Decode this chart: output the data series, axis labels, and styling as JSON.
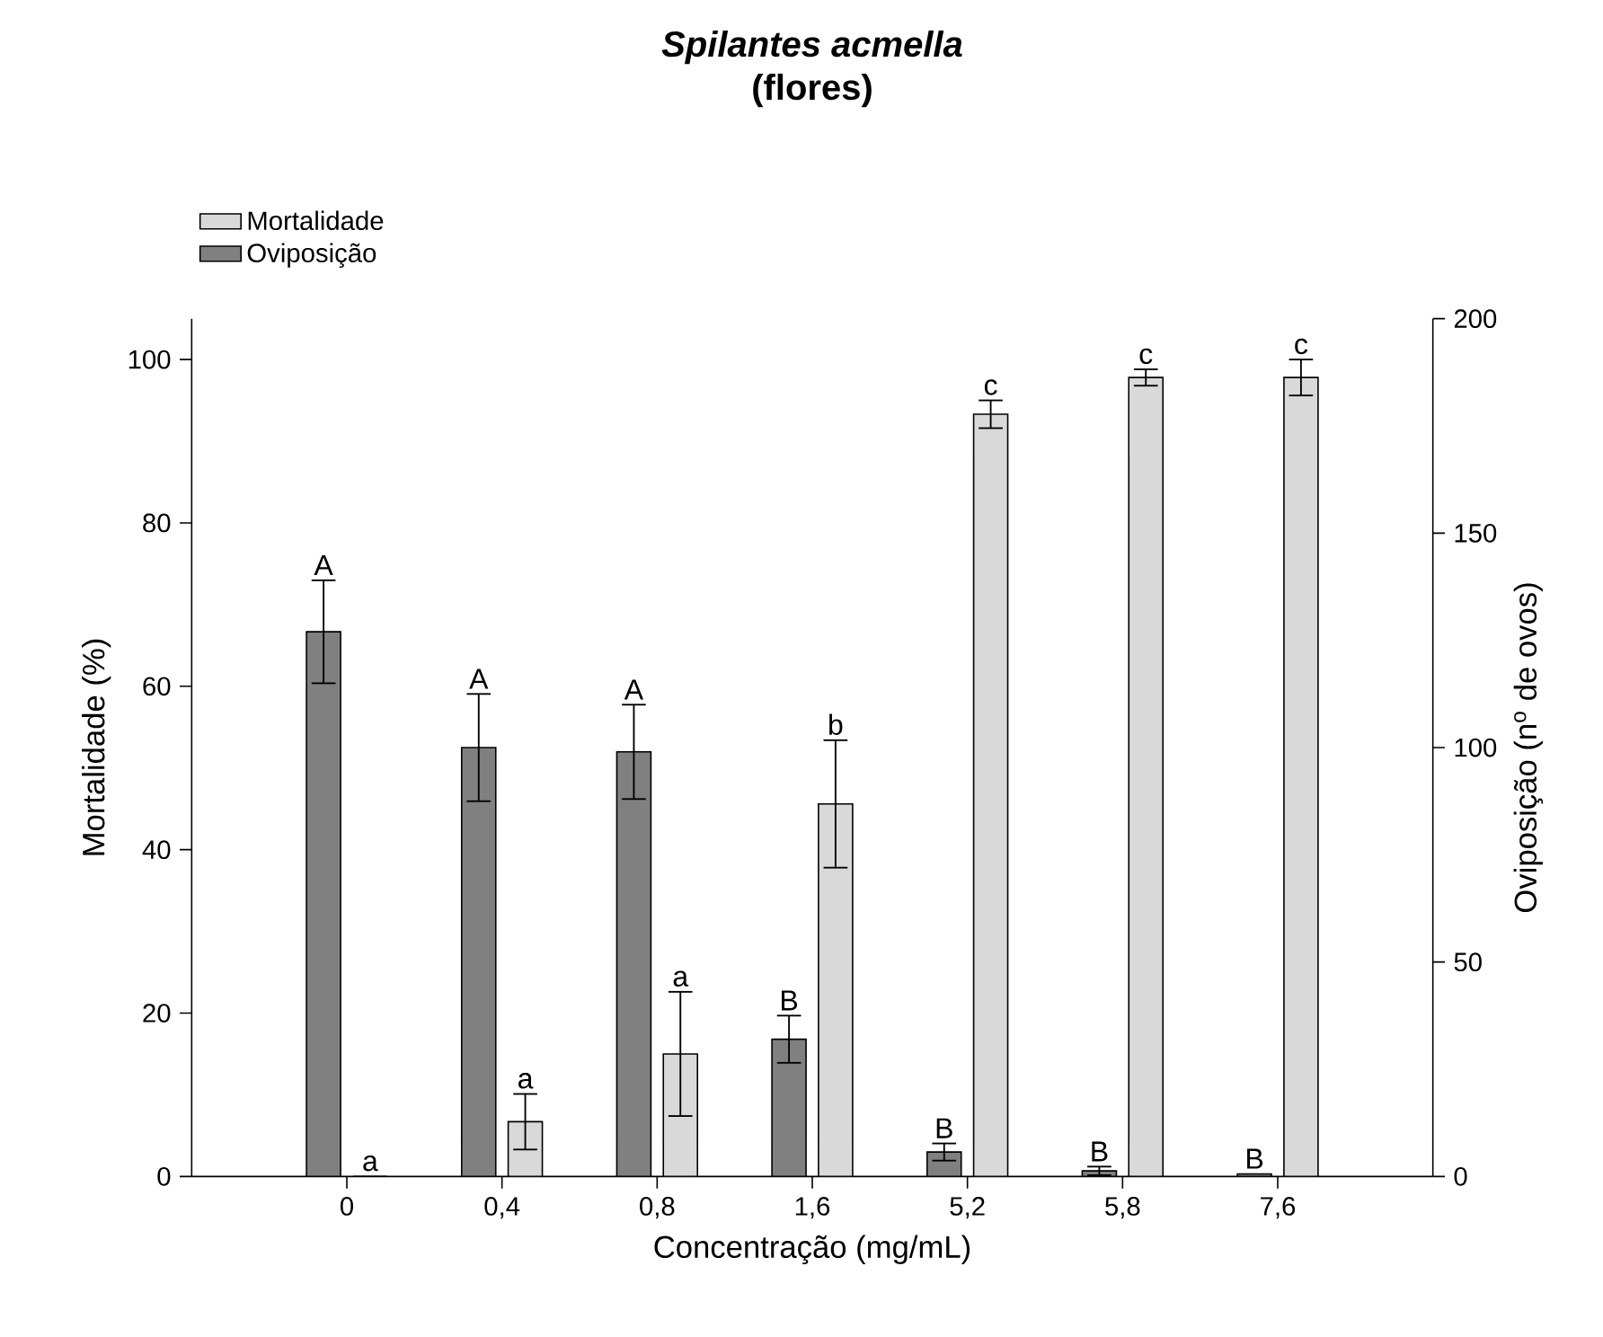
{
  "chart_data": {
    "type": "bar",
    "title": "Spilantes acmella",
    "subtitle": "(flores)",
    "xlabel": "Concentração (mg/mL)",
    "ylabel": "Mortalidade (%)",
    "y2label": "Oviposição (n$^{o}$ de ovos)",
    "categories": [
      "0",
      "0,4",
      "0,8",
      "1,6",
      "5,2",
      "5,8",
      "7,6"
    ],
    "series": [
      {
        "name": "Mortalidade",
        "color": "#d9d9d9",
        "values": [
          0,
          6.7,
          15,
          45.6,
          93.3,
          97.8,
          97.8
        ],
        "errors": [
          null,
          3.4,
          7.6,
          7.8,
          1.7,
          1,
          2.2
        ],
        "value_labels": [
          "a",
          "a",
          "a",
          "b",
          "c",
          "c",
          "c"
        ]
      },
      {
        "name": "Oviposição",
        "color": "#808080",
        "axis": "y2",
        "values": [
          127,
          100,
          99,
          32,
          5.7,
          1.3,
          0.6
        ],
        "errors": [
          12,
          12.5,
          11,
          5.5,
          2,
          1,
          null
        ],
        "value_labels": [
          "A",
          "A",
          "A",
          "B",
          "B",
          "B",
          "B"
        ]
      }
    ],
    "ylim": [
      0,
      105
    ],
    "yticks": [
      0,
      20,
      40,
      60,
      80,
      100
    ],
    "y2lim": [
      0,
      200
    ],
    "y2ticks": [
      0,
      50,
      100,
      150,
      200
    ],
    "legend": "top left"
  }
}
